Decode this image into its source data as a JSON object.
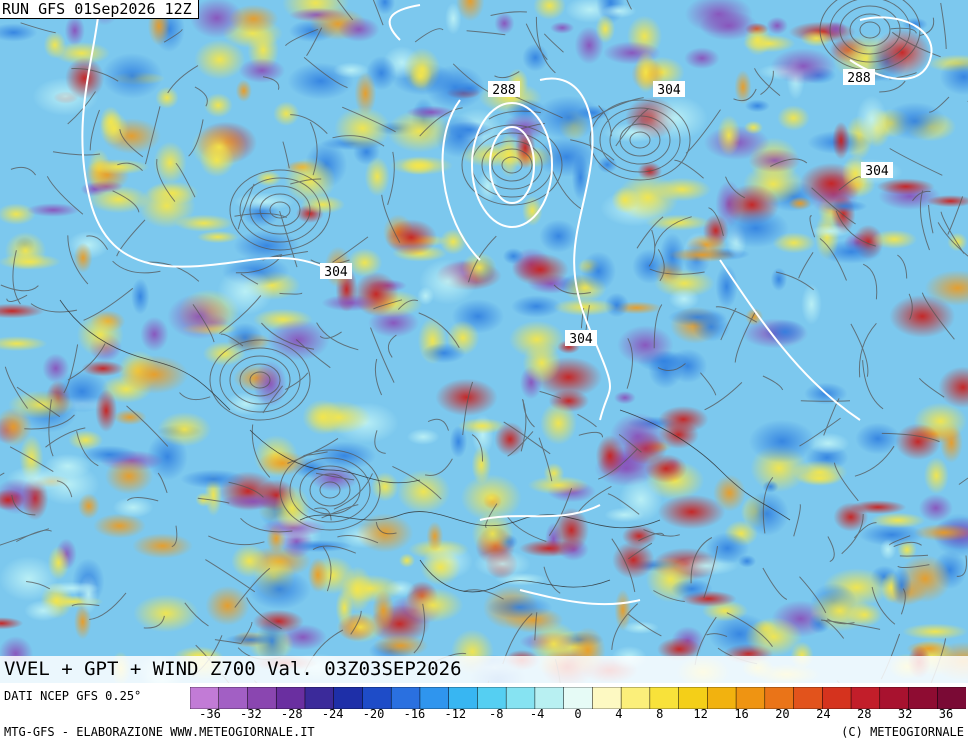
{
  "header": {
    "run": "RUN GFS 01Sep2026 12Z"
  },
  "title": "VVEL + GPT + WIND Z700 Val. 03Z03SEP2026",
  "source": "DATI NCEP GFS 0.25°",
  "credits": {
    "left": "MTG-GFS - ELABORAZIONE WWW.METEOGIORNALE.IT",
    "right": "(C) METEOGIORNALE"
  },
  "contour_labels": [
    "288",
    "304",
    "288",
    "304",
    "304",
    "304"
  ],
  "legend": {
    "ticks": [
      "-36",
      "-32",
      "-28",
      "-24",
      "-20",
      "-16",
      "-12",
      "-8",
      "-4",
      "0",
      "4",
      "8",
      "12",
      "16",
      "20",
      "24",
      "28",
      "32",
      "36"
    ],
    "colors": [
      "#c27bd6",
      "#a25fc4",
      "#8a46b0",
      "#6a2fa0",
      "#3b2a9a",
      "#1e2fa8",
      "#1e4cc8",
      "#2a70e0",
      "#2f95ee",
      "#38b6f2",
      "#55cff2",
      "#86e3f2",
      "#b8f0f2",
      "#e6fbf6",
      "#fdf9c2",
      "#fbef7a",
      "#f8e23a",
      "#f4cf18",
      "#f2b20f",
      "#ef9412",
      "#ea7418",
      "#e2531c",
      "#d5331e",
      "#c21e2a",
      "#a8122f",
      "#8e0c32",
      "#7a0a35"
    ]
  },
  "map_colors": {
    "blue": "#3aa0e8",
    "cyan": "#8fe0f0",
    "yellow": "#f5e64a",
    "orange": "#f0a020",
    "red": "#c8201e",
    "purple": "#8a4cb8",
    "streamline": "#555555",
    "contour": "#ffffff"
  }
}
